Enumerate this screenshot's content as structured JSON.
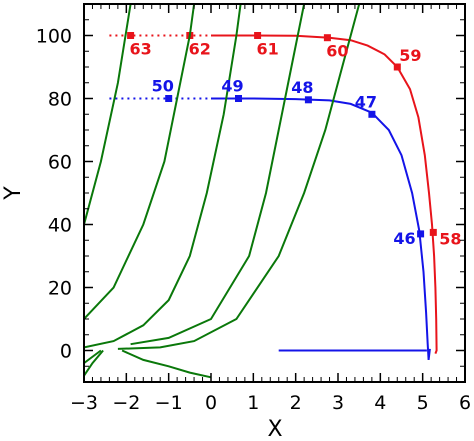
{
  "chart_data": {
    "type": "line",
    "title": "",
    "xlabel": "X",
    "ylabel": "Y",
    "xlim": [
      -3,
      6
    ],
    "ylim": [
      -10,
      110
    ],
    "x_ticks": [
      "−3",
      "−2",
      "−1",
      "0",
      "1",
      "2",
      "3",
      "4",
      "5",
      "6"
    ],
    "y_ticks": [
      "0",
      "20",
      "40",
      "60",
      "80",
      "100"
    ],
    "grid": false,
    "colors": {
      "red": "#e8141b",
      "blue": "#1414e8",
      "green": "#0a780a"
    },
    "series": [
      {
        "color": "red",
        "solid": [
          [
            0,
            100
          ],
          [
            1,
            100
          ],
          [
            2,
            99.9
          ],
          [
            2.8,
            99.3
          ],
          [
            3.3,
            98.5
          ],
          [
            3.7,
            96.8
          ],
          [
            4.1,
            94
          ],
          [
            4.4,
            90
          ],
          [
            4.7,
            83
          ],
          [
            4.9,
            74
          ],
          [
            5.05,
            62
          ],
          [
            5.15,
            50
          ],
          [
            5.22,
            40
          ],
          [
            5.27,
            30
          ],
          [
            5.3,
            20
          ],
          [
            5.32,
            10
          ],
          [
            5.33,
            0
          ],
          [
            5.3,
            -1
          ]
        ],
        "dotted": [
          [
            -2.4,
            100
          ],
          [
            0,
            100
          ]
        ],
        "points": [
          {
            "label": "63",
            "x": -1.9,
            "y": 100
          },
          {
            "label": "62",
            "x": -0.5,
            "y": 100
          },
          {
            "label": "61",
            "x": 1.1,
            "y": 100
          },
          {
            "label": "60",
            "x": 2.75,
            "y": 99.3
          },
          {
            "label": "59",
            "x": 4.4,
            "y": 90
          },
          {
            "label": "58",
            "x": 5.25,
            "y": 37.5
          }
        ]
      },
      {
        "color": "blue",
        "solid": [
          [
            0,
            80
          ],
          [
            1,
            80
          ],
          [
            2,
            79.8
          ],
          [
            2.8,
            79.4
          ],
          [
            3.3,
            78.3
          ],
          [
            3.8,
            75.5
          ],
          [
            4.2,
            70
          ],
          [
            4.5,
            62
          ],
          [
            4.75,
            50
          ],
          [
            4.92,
            38
          ],
          [
            5.02,
            25
          ],
          [
            5.08,
            12
          ],
          [
            5.12,
            2
          ],
          [
            5.14,
            -3
          ],
          [
            5.17,
            0.5
          ]
        ],
        "dotted": [
          [
            -2.4,
            80
          ],
          [
            0,
            80
          ]
        ],
        "baseline": [
          [
            1.6,
            0
          ],
          [
            5.1,
            0
          ]
        ],
        "points": [
          {
            "label": "50",
            "x": -1.0,
            "y": 80
          },
          {
            "label": "49",
            "x": 0.65,
            "y": 80
          },
          {
            "label": "48",
            "x": 2.3,
            "y": 79.6
          },
          {
            "label": "47",
            "x": 3.8,
            "y": 75
          },
          {
            "label": "46",
            "x": 4.95,
            "y": 37
          }
        ]
      },
      {
        "color": "green",
        "curves": [
          [
            [
              -3,
              40
            ],
            [
              -2.6,
              60
            ],
            [
              -2.2,
              85
            ],
            [
              -1.9,
              110
            ]
          ],
          [
            [
              -3,
              10
            ],
            [
              -2.3,
              20
            ],
            [
              -1.6,
              40
            ],
            [
              -1.1,
              60
            ],
            [
              -0.8,
              80
            ],
            [
              -0.5,
              100
            ],
            [
              -0.4,
              110
            ]
          ],
          [
            [
              -3,
              1
            ],
            [
              -2.3,
              3
            ],
            [
              -1.6,
              8
            ],
            [
              -1.0,
              16
            ],
            [
              -0.5,
              30
            ],
            [
              -0.1,
              50
            ],
            [
              0.3,
              75
            ],
            [
              0.6,
              100
            ],
            [
              0.7,
              110
            ]
          ],
          [
            [
              -1.9,
              2
            ],
            [
              -1.0,
              4
            ],
            [
              0.0,
              10
            ],
            [
              0.9,
              30
            ],
            [
              1.3,
              50
            ],
            [
              1.6,
              70
            ],
            [
              1.9,
              90
            ],
            [
              2.2,
              110
            ]
          ],
          [
            [
              -2.2,
              0.5
            ],
            [
              -1.2,
              1
            ],
            [
              -0.4,
              3
            ],
            [
              0.6,
              10
            ],
            [
              1.6,
              30
            ],
            [
              2.2,
              50
            ],
            [
              2.7,
              70
            ],
            [
              3.1,
              90
            ],
            [
              3.5,
              110
            ]
          ],
          [
            [
              -3,
              -4
            ],
            [
              -2.6,
              0
            ]
          ],
          [
            [
              -3,
              -8
            ],
            [
              -2.8,
              -4
            ],
            [
              -2.55,
              0
            ]
          ],
          [
            [
              -2.1,
              0
            ],
            [
              -1.6,
              -3
            ],
            [
              -1.0,
              -5
            ],
            [
              -0.5,
              -7
            ],
            [
              0.0,
              -8.5
            ]
          ]
        ]
      }
    ]
  }
}
